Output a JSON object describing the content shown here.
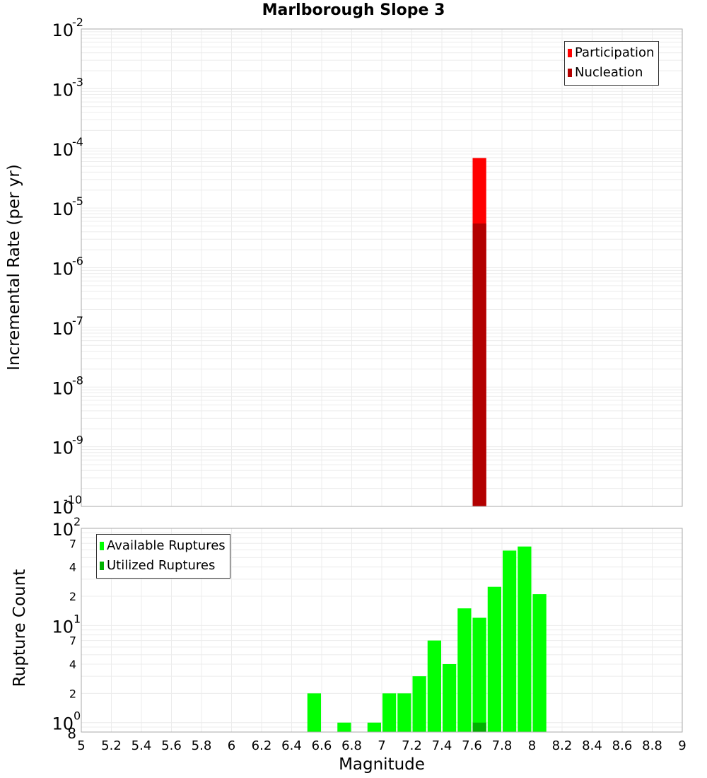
{
  "title": "Marlborough Slope 3",
  "colors": {
    "participation": "#ff0000",
    "nucleation": "#b20000",
    "available": "#00ff00",
    "utilized": "#00b200",
    "grid": "#ececec",
    "axis": "#aaaaaa"
  },
  "top_chart": {
    "ylabel": "Incremental Rate (per yr)",
    "legend": [
      {
        "label": "Participation",
        "color_key": "participation"
      },
      {
        "label": "Nucleation",
        "color_key": "nucleation"
      }
    ]
  },
  "bottom_chart": {
    "ylabel": "Rupture Count",
    "xlabel": "Magnitude",
    "legend": [
      {
        "label": "Available Ruptures",
        "color_key": "available"
      },
      {
        "label": "Utilized Ruptures",
        "color_key": "utilized"
      }
    ]
  },
  "chart_data": [
    {
      "type": "bar",
      "title": "Marlborough Slope 3",
      "xlabel": "",
      "ylabel": "Incremental Rate (per yr)",
      "yscale": "log",
      "xlim": [
        5,
        9
      ],
      "ylim": [
        1e-10,
        0.01
      ],
      "ytick_exponents": [
        -10,
        -9,
        -8,
        -7,
        -6,
        -5,
        -4,
        -3,
        -2
      ],
      "grid": true,
      "legend_position": "top-right",
      "bin_width": 0.1,
      "series": [
        {
          "name": "Participation",
          "x": [
            7.65
          ],
          "values": [
            6.9e-05
          ]
        },
        {
          "name": "Nucleation",
          "x": [
            7.65
          ],
          "values": [
            5.5e-06
          ]
        }
      ]
    },
    {
      "type": "bar",
      "title": "",
      "xlabel": "Magnitude",
      "ylabel": "Rupture Count",
      "yscale": "log",
      "xlim": [
        5,
        9
      ],
      "ylim": [
        0.8,
        100
      ],
      "xticks": [
        "5",
        "5.2",
        "5.4",
        "5.6",
        "5.8",
        "6",
        "6.2",
        "6.4",
        "6.6",
        "6.8",
        "7",
        "7.2",
        "7.4",
        "7.6",
        "7.8",
        "8",
        "8.2",
        "8.4",
        "8.6",
        "8.8",
        "9"
      ],
      "grid": true,
      "legend_position": "top-left",
      "bin_width": 0.1,
      "series": [
        {
          "name": "Available Ruptures",
          "x": [
            6.55,
            6.75,
            6.95,
            7.05,
            7.15,
            7.25,
            7.35,
            7.45,
            7.55,
            7.65,
            7.75,
            7.85,
            7.95,
            8.05
          ],
          "values": [
            2,
            1,
            1,
            2,
            2,
            3,
            7,
            4,
            15,
            12,
            25,
            59,
            65,
            21
          ]
        },
        {
          "name": "Utilized Ruptures",
          "x": [
            7.65
          ],
          "values": [
            1
          ]
        }
      ]
    }
  ]
}
